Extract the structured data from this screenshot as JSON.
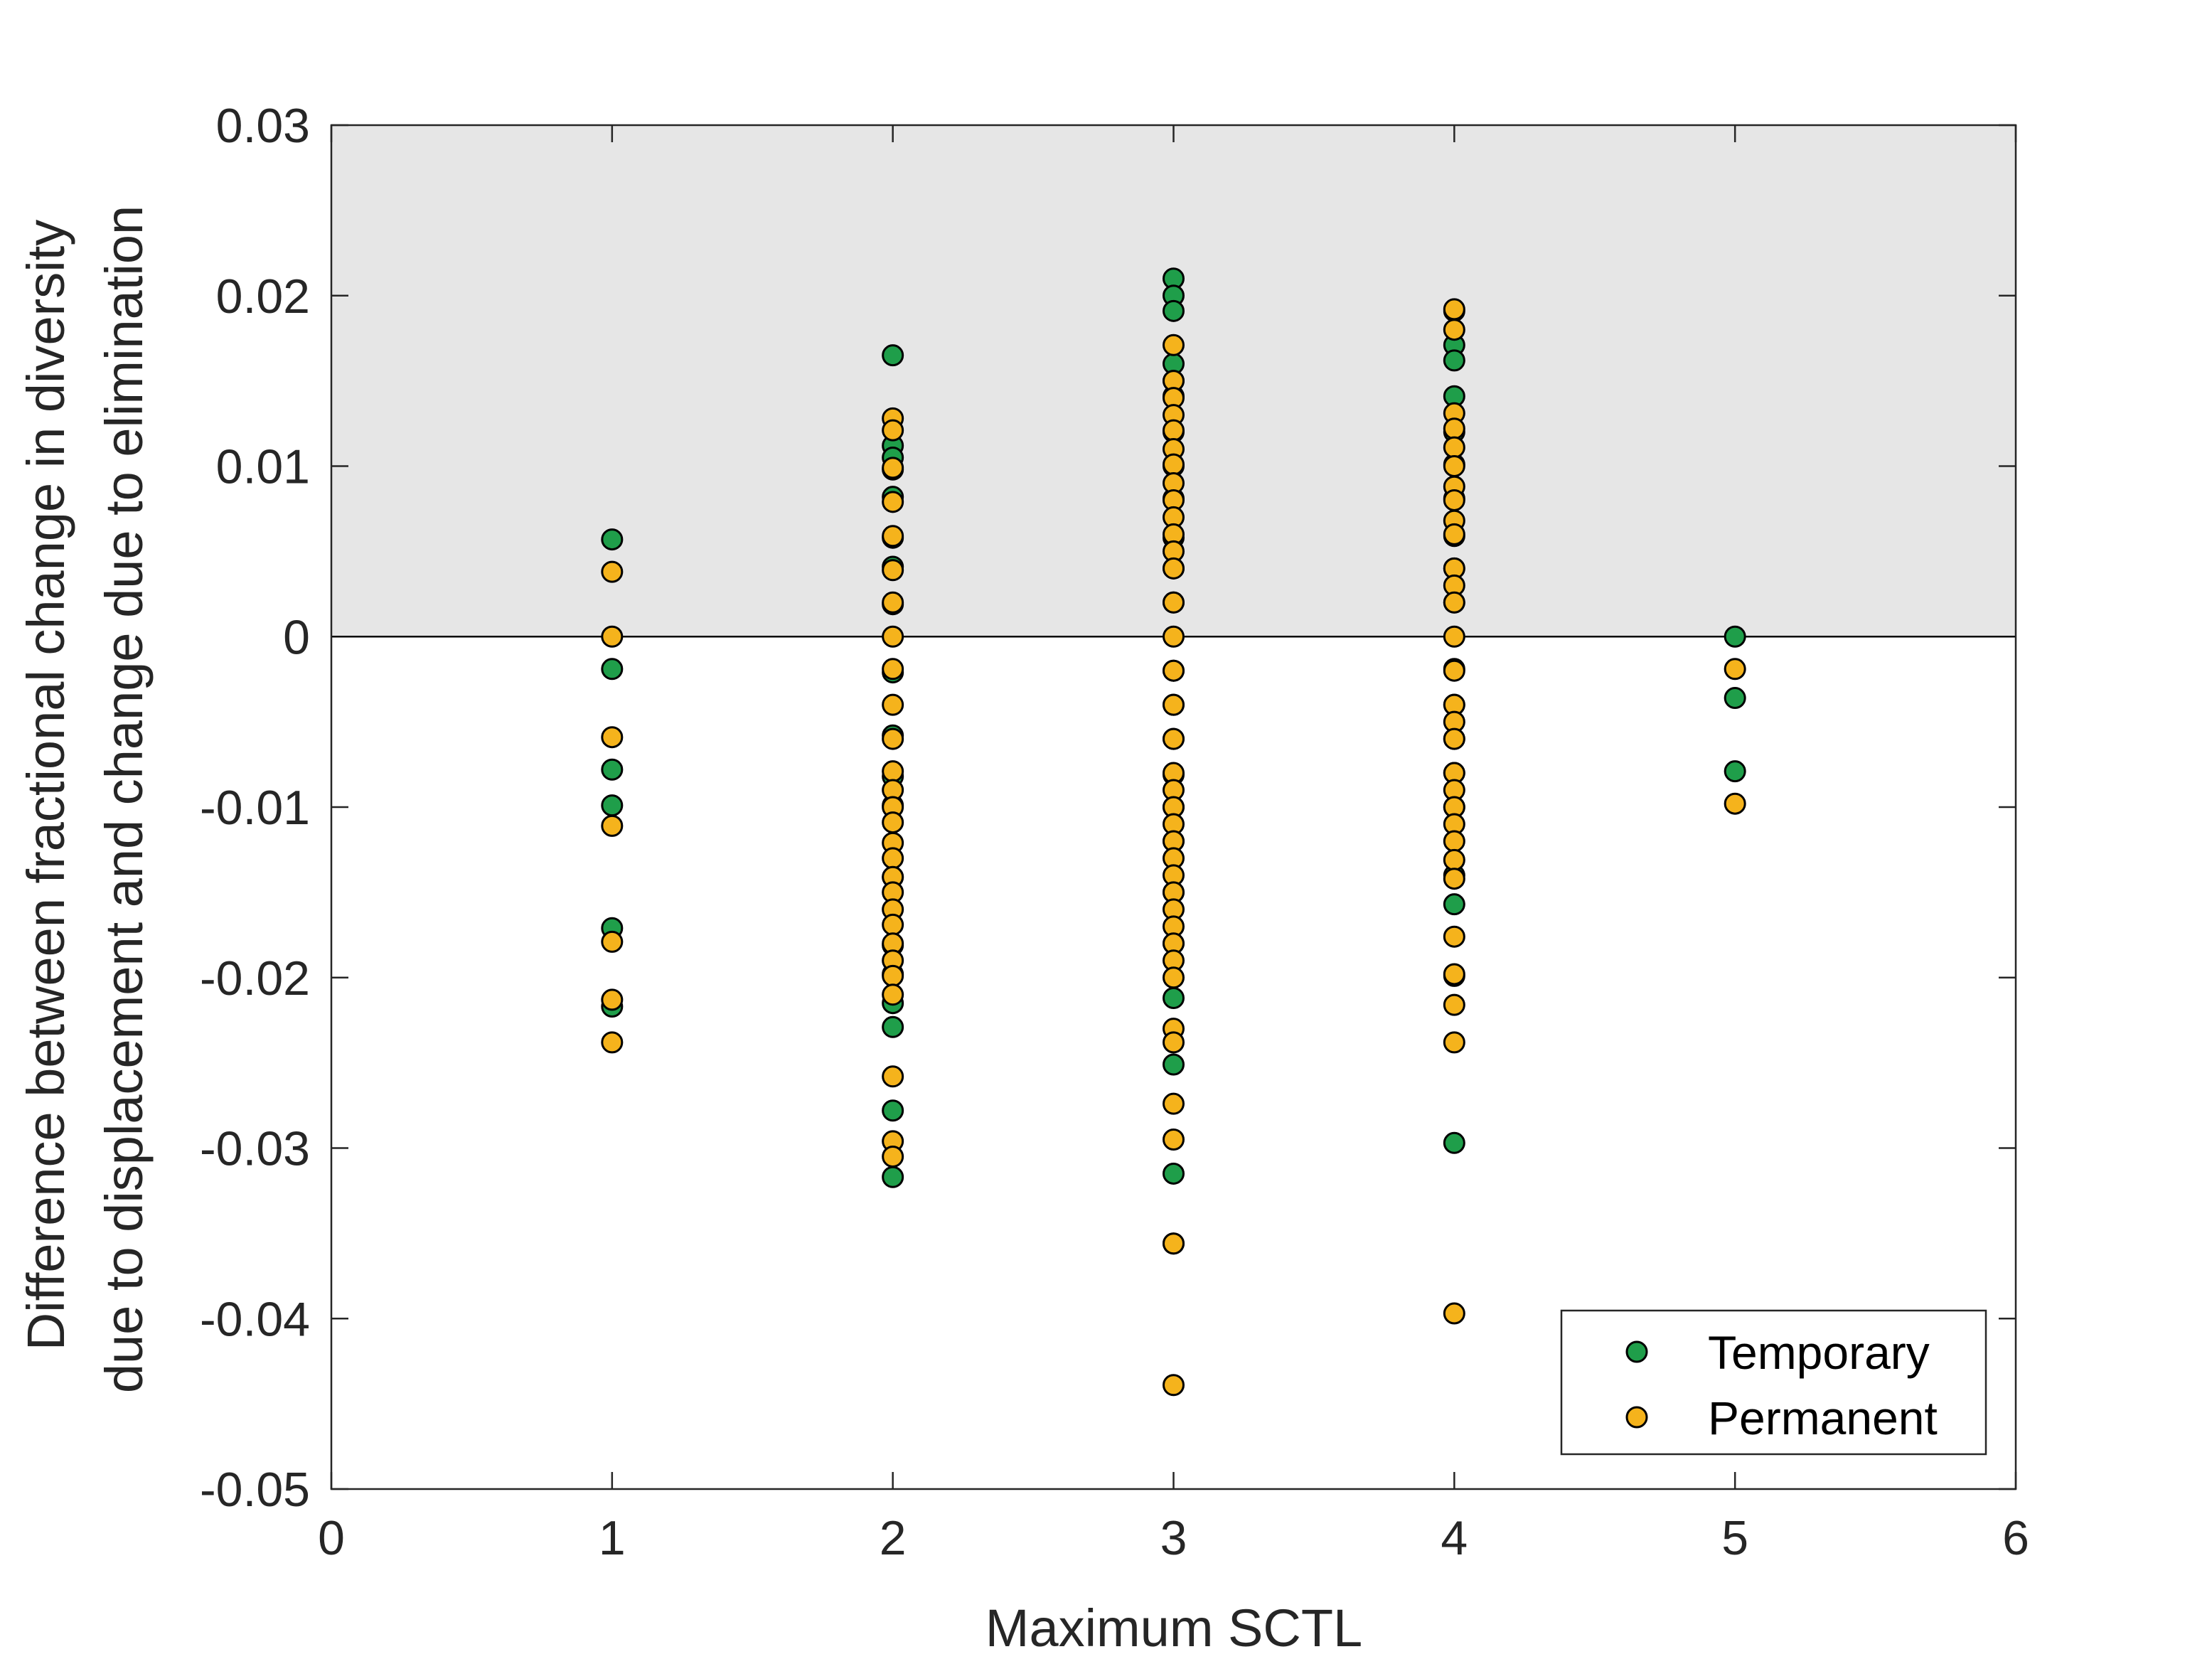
{
  "chart_data": {
    "type": "scatter",
    "title": "",
    "xlabel": "Maximum SCTL",
    "ylabel_lines": [
      "Difference between fractional change in diversity",
      "due to displacement and change due to elimination"
    ],
    "xlim": [
      0,
      6
    ],
    "ylim": [
      -0.05,
      0.03
    ],
    "xticks": [
      "0",
      "1",
      "2",
      "3",
      "4",
      "5",
      "6"
    ],
    "yticks": [
      "-0.05",
      "-0.04",
      "-0.03",
      "-0.02",
      "-0.01",
      "0",
      "0.01",
      "0.02",
      "0.03"
    ],
    "shaded_region": {
      "y_from": 0,
      "y_to": 0.03,
      "color": "#e6e6e6"
    },
    "reference_line_y": 0,
    "legend_position": "bottom-right",
    "series": [
      {
        "name": "Temporary",
        "color": "#1f9e4a",
        "points": [
          [
            1,
            0.0057
          ],
          [
            1,
            -0.0019
          ],
          [
            1,
            -0.0078
          ],
          [
            1,
            -0.0099
          ],
          [
            1,
            -0.0171
          ],
          [
            1,
            -0.0217
          ],
          [
            2,
            0.0165
          ],
          [
            2,
            0.0112
          ],
          [
            2,
            0.0105
          ],
          [
            2,
            0.0098
          ],
          [
            2,
            0.0082
          ],
          [
            2,
            0.0058
          ],
          [
            2,
            0.0041
          ],
          [
            2,
            0.0019
          ],
          [
            2,
            -0.0021
          ],
          [
            2,
            -0.0058
          ],
          [
            2,
            -0.0082
          ],
          [
            2,
            -0.0099
          ],
          [
            2,
            -0.0141
          ],
          [
            2,
            -0.0181
          ],
          [
            2,
            -0.0198
          ],
          [
            2,
            -0.0215
          ],
          [
            2,
            -0.0229
          ],
          [
            2,
            -0.0278
          ],
          [
            2,
            -0.0317
          ],
          [
            3,
            0.021
          ],
          [
            3,
            0.02
          ],
          [
            3,
            0.0191
          ],
          [
            3,
            0.016
          ],
          [
            3,
            0.015
          ],
          [
            3,
            0.0141
          ],
          [
            3,
            0.012
          ],
          [
            3,
            0.01
          ],
          [
            3,
            0.0081
          ],
          [
            3,
            0.0058
          ],
          [
            3,
            0.004
          ],
          [
            3,
            0.002
          ],
          [
            3,
            -0.002
          ],
          [
            3,
            -0.004
          ],
          [
            3,
            -0.006
          ],
          [
            3,
            -0.0081
          ],
          [
            3,
            -0.01
          ],
          [
            3,
            -0.012
          ],
          [
            3,
            -0.015
          ],
          [
            3,
            -0.018
          ],
          [
            3,
            -0.0212
          ],
          [
            3,
            -0.0251
          ],
          [
            3,
            -0.0315
          ],
          [
            3,
            -0.0356
          ],
          [
            4,
            0.0191
          ],
          [
            4,
            0.0171
          ],
          [
            4,
            0.0162
          ],
          [
            4,
            0.0141
          ],
          [
            4,
            0.012
          ],
          [
            4,
            0.0101
          ],
          [
            4,
            0.0081
          ],
          [
            4,
            0.0059
          ],
          [
            4,
            0.004
          ],
          [
            4,
            0.002
          ],
          [
            4,
            -0.0019
          ],
          [
            4,
            -0.004
          ],
          [
            4,
            -0.006
          ],
          [
            4,
            -0.008
          ],
          [
            4,
            -0.01
          ],
          [
            4,
            -0.014
          ],
          [
            4,
            -0.0157
          ],
          [
            4,
            -0.0199
          ],
          [
            4,
            -0.0297
          ],
          [
            5,
            0.0
          ],
          [
            5,
            -0.0036
          ],
          [
            5,
            -0.0079
          ]
        ]
      },
      {
        "name": "Permanent",
        "color": "#f5b31c",
        "points": [
          [
            1,
            0.0038
          ],
          [
            1,
            0.0
          ],
          [
            1,
            -0.0059
          ],
          [
            1,
            -0.0111
          ],
          [
            1,
            -0.0179
          ],
          [
            1,
            -0.0213
          ],
          [
            1,
            -0.0238
          ],
          [
            2,
            0.0128
          ],
          [
            2,
            0.0121
          ],
          [
            2,
            0.0099
          ],
          [
            2,
            0.0079
          ],
          [
            2,
            0.0059
          ],
          [
            2,
            0.0039
          ],
          [
            2,
            0.002
          ],
          [
            2,
            0.0
          ],
          [
            2,
            -0.0019
          ],
          [
            2,
            -0.004
          ],
          [
            2,
            -0.006
          ],
          [
            2,
            -0.0079
          ],
          [
            2,
            -0.009
          ],
          [
            2,
            -0.01
          ],
          [
            2,
            -0.0109
          ],
          [
            2,
            -0.0121
          ],
          [
            2,
            -0.013
          ],
          [
            2,
            -0.0141
          ],
          [
            2,
            -0.015
          ],
          [
            2,
            -0.016
          ],
          [
            2,
            -0.0169
          ],
          [
            2,
            -0.018
          ],
          [
            2,
            -0.019
          ],
          [
            2,
            -0.0199
          ],
          [
            2,
            -0.021
          ],
          [
            2,
            -0.0258
          ],
          [
            2,
            -0.0296
          ],
          [
            2,
            -0.0305
          ],
          [
            3,
            0.0171
          ],
          [
            3,
            0.015
          ],
          [
            3,
            0.014
          ],
          [
            3,
            0.013
          ],
          [
            3,
            0.0121
          ],
          [
            3,
            0.011
          ],
          [
            3,
            0.0101
          ],
          [
            3,
            0.009
          ],
          [
            3,
            0.008
          ],
          [
            3,
            0.007
          ],
          [
            3,
            0.006
          ],
          [
            3,
            0.005
          ],
          [
            3,
            0.004
          ],
          [
            3,
            0.002
          ],
          [
            3,
            0.0
          ],
          [
            3,
            -0.002
          ],
          [
            3,
            -0.004
          ],
          [
            3,
            -0.006
          ],
          [
            3,
            -0.008
          ],
          [
            3,
            -0.009
          ],
          [
            3,
            -0.01
          ],
          [
            3,
            -0.011
          ],
          [
            3,
            -0.012
          ],
          [
            3,
            -0.013
          ],
          [
            3,
            -0.014
          ],
          [
            3,
            -0.015
          ],
          [
            3,
            -0.016
          ],
          [
            3,
            -0.017
          ],
          [
            3,
            -0.018
          ],
          [
            3,
            -0.019
          ],
          [
            3,
            -0.02
          ],
          [
            3,
            -0.023
          ],
          [
            3,
            -0.0238
          ],
          [
            3,
            -0.0274
          ],
          [
            3,
            -0.0295
          ],
          [
            3,
            -0.0356
          ],
          [
            3,
            -0.0439
          ],
          [
            4,
            0.0192
          ],
          [
            4,
            0.018
          ],
          [
            4,
            0.0131
          ],
          [
            4,
            0.0122
          ],
          [
            4,
            0.0111
          ],
          [
            4,
            0.01
          ],
          [
            4,
            0.0088
          ],
          [
            4,
            0.008
          ],
          [
            4,
            0.0068
          ],
          [
            4,
            0.006
          ],
          [
            4,
            0.004
          ],
          [
            4,
            0.003
          ],
          [
            4,
            0.002
          ],
          [
            4,
            0.0
          ],
          [
            4,
            -0.002
          ],
          [
            4,
            -0.004
          ],
          [
            4,
            -0.005
          ],
          [
            4,
            -0.006
          ],
          [
            4,
            -0.008
          ],
          [
            4,
            -0.009
          ],
          [
            4,
            -0.01
          ],
          [
            4,
            -0.011
          ],
          [
            4,
            -0.012
          ],
          [
            4,
            -0.0131
          ],
          [
            4,
            -0.0142
          ],
          [
            4,
            -0.0176
          ],
          [
            4,
            -0.0198
          ],
          [
            4,
            -0.0216
          ],
          [
            4,
            -0.0238
          ],
          [
            4,
            -0.0397
          ],
          [
            5,
            -0.0019
          ],
          [
            5,
            -0.0098
          ]
        ]
      }
    ]
  }
}
